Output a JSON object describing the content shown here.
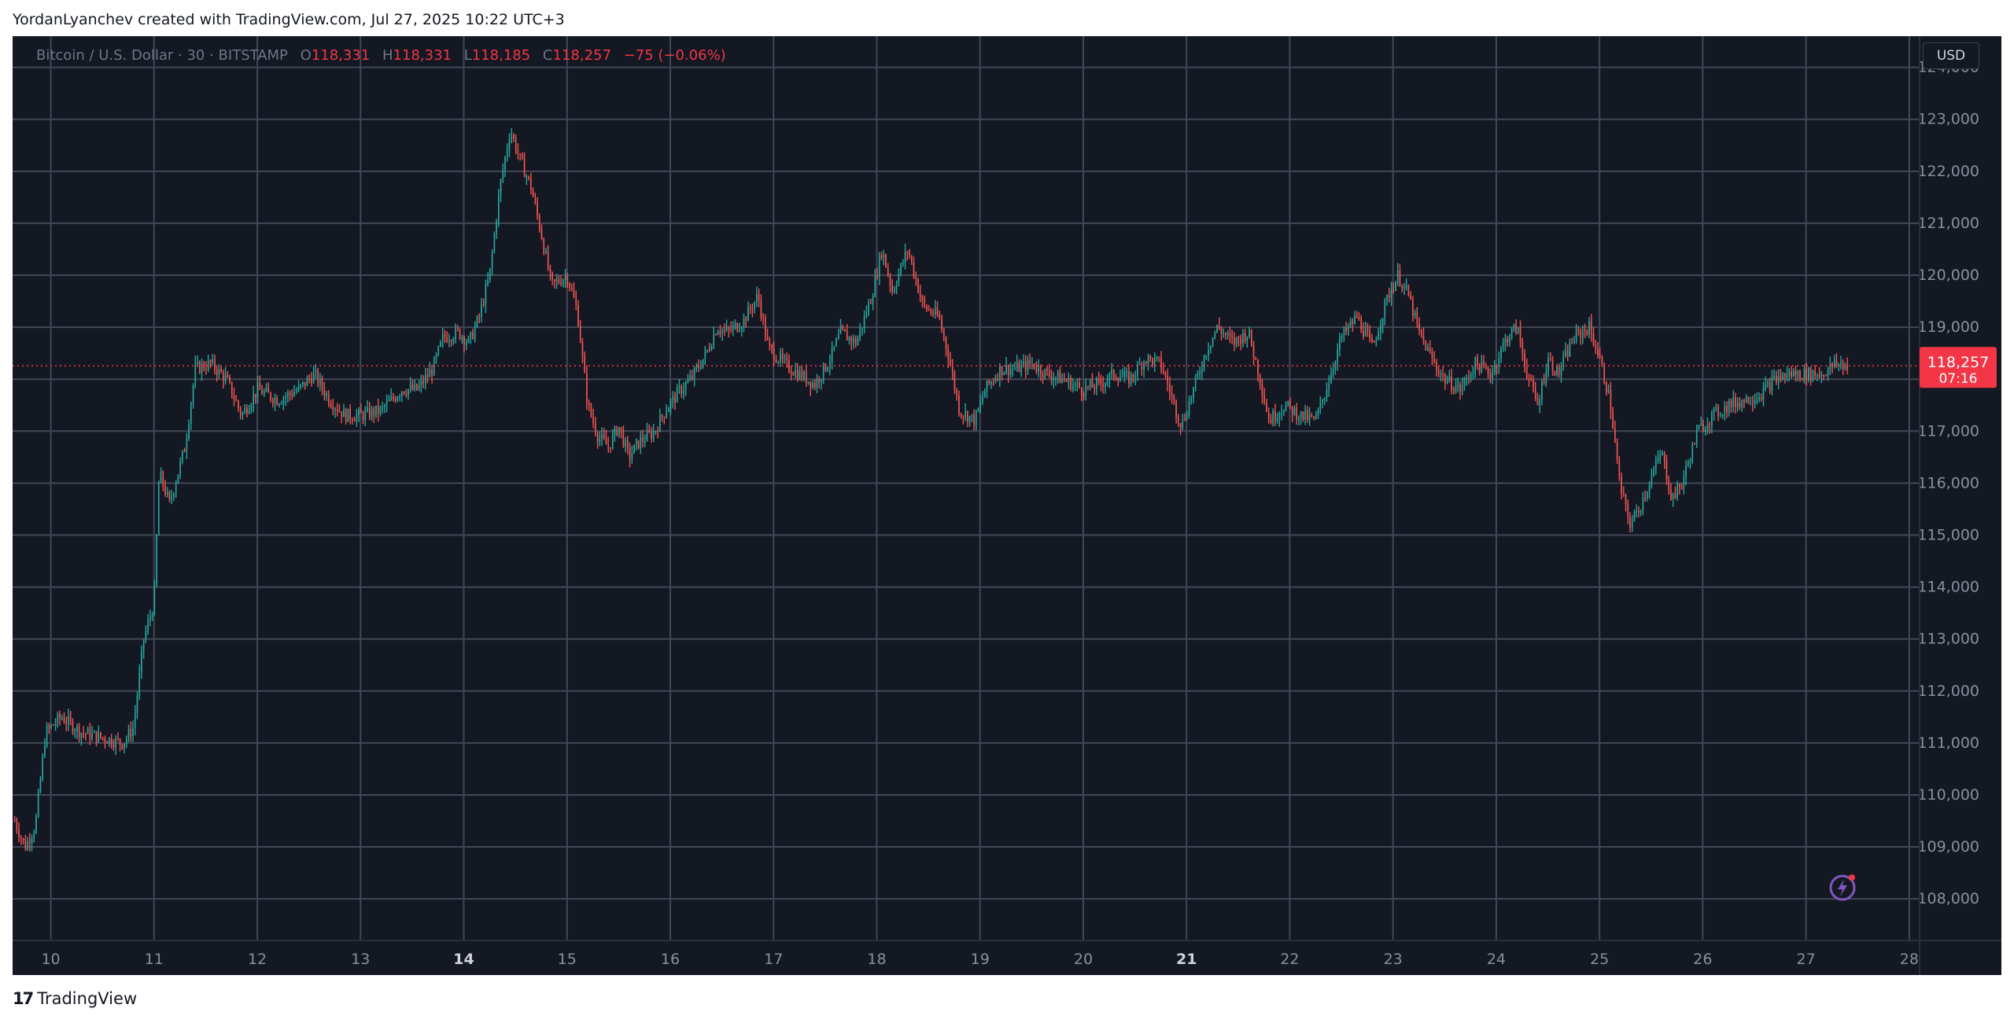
{
  "caption": "YordanLyanchev created with TradingView.com, Jul 27, 2025 10:22 UTC+3",
  "brand": "TradingView",
  "legend": {
    "symbol": "Bitcoin / U.S. Dollar · 30 · BITSTAMP",
    "o_label": "O",
    "o_value": "118,331",
    "h_label": "H",
    "h_value": "118,331",
    "l_label": "L",
    "l_value": "118,185",
    "c_label": "C",
    "c_value": "118,257",
    "change": "−75 (−0.06%)"
  },
  "currency_button": "USD",
  "colors": {
    "background": "#141823",
    "grid": "#424756",
    "up": "#26a69a",
    "down": "#ef5350",
    "text": "#d1d4dc",
    "price_label_bg": "#f23645"
  },
  "chart_data": {
    "type": "candlestick",
    "timeframe": "30",
    "x_tick_labels": [
      "10",
      "11",
      "12",
      "13",
      "14",
      "15",
      "16",
      "17",
      "18",
      "19",
      "20",
      "21",
      "22",
      "23",
      "24",
      "25",
      "26",
      "27",
      "28"
    ],
    "bold_ticks": [
      "14",
      "21"
    ],
    "y_tick_labels": [
      "108,000",
      "109,000",
      "110,000",
      "111,000",
      "112,000",
      "113,000",
      "114,000",
      "115,000",
      "116,000",
      "117,000",
      "118,000",
      "119,000",
      "120,000",
      "121,000",
      "122,000",
      "123,000",
      "124,000"
    ],
    "ylim": [
      107200,
      124600
    ],
    "xlim": [
      9.63,
      28.1
    ],
    "last_price": 118257,
    "last_price_label": "118,257",
    "countdown_label": "07:16",
    "price_path": [
      [
        9.65,
        109500
      ],
      [
        9.75,
        109000
      ],
      [
        9.85,
        109400
      ],
      [
        9.95,
        111200
      ],
      [
        10.1,
        111500
      ],
      [
        10.3,
        111200
      ],
      [
        10.5,
        111100
      ],
      [
        10.7,
        111000
      ],
      [
        10.8,
        111300
      ],
      [
        10.9,
        113000
      ],
      [
        11.0,
        113700
      ],
      [
        11.05,
        116200
      ],
      [
        11.15,
        115600
      ],
      [
        11.3,
        116700
      ],
      [
        11.4,
        118200
      ],
      [
        11.55,
        118300
      ],
      [
        11.7,
        118000
      ],
      [
        11.85,
        117300
      ],
      [
        12.0,
        117800
      ],
      [
        12.2,
        117600
      ],
      [
        12.4,
        117800
      ],
      [
        12.55,
        118100
      ],
      [
        12.7,
        117600
      ],
      [
        12.85,
        117300
      ],
      [
        13.0,
        117300
      ],
      [
        13.2,
        117400
      ],
      [
        13.4,
        117800
      ],
      [
        13.55,
        117800
      ],
      [
        13.7,
        118200
      ],
      [
        13.8,
        118800
      ],
      [
        13.95,
        118900
      ],
      [
        14.05,
        118700
      ],
      [
        14.15,
        119200
      ],
      [
        14.25,
        120000
      ],
      [
        14.35,
        121700
      ],
      [
        14.45,
        122800
      ],
      [
        14.55,
        122200
      ],
      [
        14.65,
        121700
      ],
      [
        14.75,
        120800
      ],
      [
        14.85,
        119800
      ],
      [
        15.0,
        120000
      ],
      [
        15.1,
        119300
      ],
      [
        15.2,
        117500
      ],
      [
        15.3,
        116900
      ],
      [
        15.4,
        116700
      ],
      [
        15.5,
        117100
      ],
      [
        15.6,
        116500
      ],
      [
        15.7,
        116800
      ],
      [
        15.85,
        117000
      ],
      [
        15.95,
        117400
      ],
      [
        16.1,
        117800
      ],
      [
        16.2,
        118000
      ],
      [
        16.35,
        118500
      ],
      [
        16.45,
        119000
      ],
      [
        16.55,
        118900
      ],
      [
        16.7,
        119100
      ],
      [
        16.85,
        119600
      ],
      [
        16.95,
        118600
      ],
      [
        17.1,
        118300
      ],
      [
        17.25,
        118100
      ],
      [
        17.4,
        117900
      ],
      [
        17.55,
        118400
      ],
      [
        17.65,
        118900
      ],
      [
        17.8,
        118700
      ],
      [
        17.95,
        119600
      ],
      [
        18.05,
        120500
      ],
      [
        18.15,
        119700
      ],
      [
        18.3,
        120500
      ],
      [
        18.45,
        119400
      ],
      [
        18.6,
        119200
      ],
      [
        18.7,
        118400
      ],
      [
        18.8,
        117400
      ],
      [
        18.95,
        117200
      ],
      [
        19.05,
        117800
      ],
      [
        19.2,
        118200
      ],
      [
        19.35,
        118200
      ],
      [
        19.5,
        118300
      ],
      [
        19.65,
        118100
      ],
      [
        19.8,
        118000
      ],
      [
        20.0,
        117800
      ],
      [
        20.15,
        117900
      ],
      [
        20.3,
        118100
      ],
      [
        20.45,
        118000
      ],
      [
        20.6,
        118400
      ],
      [
        20.75,
        118300
      ],
      [
        20.85,
        117700
      ],
      [
        20.95,
        117100
      ],
      [
        21.1,
        118000
      ],
      [
        21.2,
        118600
      ],
      [
        21.3,
        119000
      ],
      [
        21.45,
        118700
      ],
      [
        21.6,
        118900
      ],
      [
        21.7,
        118100
      ],
      [
        21.8,
        117200
      ],
      [
        21.95,
        117500
      ],
      [
        22.1,
        117300
      ],
      [
        22.25,
        117200
      ],
      [
        22.35,
        117800
      ],
      [
        22.5,
        118800
      ],
      [
        22.65,
        119200
      ],
      [
        22.8,
        118600
      ],
      [
        22.95,
        119600
      ],
      [
        23.05,
        120000
      ],
      [
        23.15,
        119600
      ],
      [
        23.25,
        118900
      ],
      [
        23.4,
        118300
      ],
      [
        23.5,
        118000
      ],
      [
        23.65,
        117800
      ],
      [
        23.8,
        118300
      ],
      [
        23.95,
        118100
      ],
      [
        24.1,
        118800
      ],
      [
        24.2,
        119000
      ],
      [
        24.3,
        118100
      ],
      [
        24.4,
        117500
      ],
      [
        24.5,
        118400
      ],
      [
        24.6,
        118100
      ],
      [
        24.75,
        118800
      ],
      [
        24.9,
        119000
      ],
      [
        25.0,
        118400
      ],
      [
        25.1,
        117600
      ],
      [
        25.2,
        115900
      ],
      [
        25.3,
        115200
      ],
      [
        25.4,
        115600
      ],
      [
        25.5,
        116100
      ],
      [
        25.6,
        116600
      ],
      [
        25.7,
        115700
      ],
      [
        25.8,
        116000
      ],
      [
        25.95,
        117000
      ],
      [
        26.1,
        117300
      ],
      [
        26.25,
        117500
      ],
      [
        26.4,
        117600
      ],
      [
        26.55,
        117700
      ],
      [
        26.7,
        118000
      ],
      [
        26.85,
        118100
      ],
      [
        27.0,
        118100
      ],
      [
        27.15,
        118100
      ],
      [
        27.3,
        118300
      ],
      [
        27.4,
        118257
      ]
    ]
  }
}
